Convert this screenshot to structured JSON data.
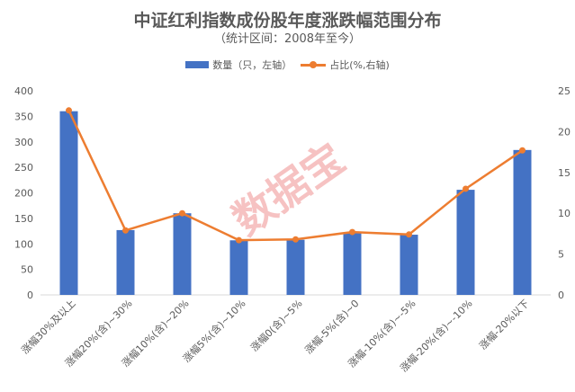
{
  "chart_data": {
    "type": "bar+line",
    "title": "中证红利指数成份股年度涨跌幅范围分布",
    "subtitle": "（统计区间：2008年至今）",
    "categories": [
      "涨幅30%及以上",
      "涨幅20%(含)~30%",
      "涨幅10%(含)~20%",
      "涨幅5%(含)~10%",
      "涨幅0(含)~5%",
      "涨幅-5%(含)~0",
      "涨幅-10%(含)~-5%",
      "涨幅-20%(含)~-10%",
      "涨幅-20%以下"
    ],
    "series": [
      {
        "name": "数量（只，左轴）",
        "type": "bar",
        "axis": "left",
        "color": "#4472c4",
        "values": [
          360,
          127,
          160,
          107,
          108,
          122,
          118,
          206,
          284
        ]
      },
      {
        "name": "占比(%,右轴)",
        "type": "line",
        "axis": "right",
        "color": "#ed7d31",
        "values": [
          22.6,
          7.9,
          10.0,
          6.7,
          6.8,
          7.7,
          7.4,
          13.0,
          17.7
        ]
      }
    ],
    "left_axis": {
      "range": [
        0,
        400
      ],
      "ticks": [
        "0",
        "50",
        "100",
        "150",
        "200",
        "250",
        "300",
        "350",
        "400"
      ]
    },
    "right_axis": {
      "range": [
        0,
        25
      ],
      "ticks": [
        "0",
        "5",
        "10",
        "15",
        "20",
        "25"
      ]
    },
    "legend": "top",
    "grid": false,
    "watermark": "数据宝"
  }
}
